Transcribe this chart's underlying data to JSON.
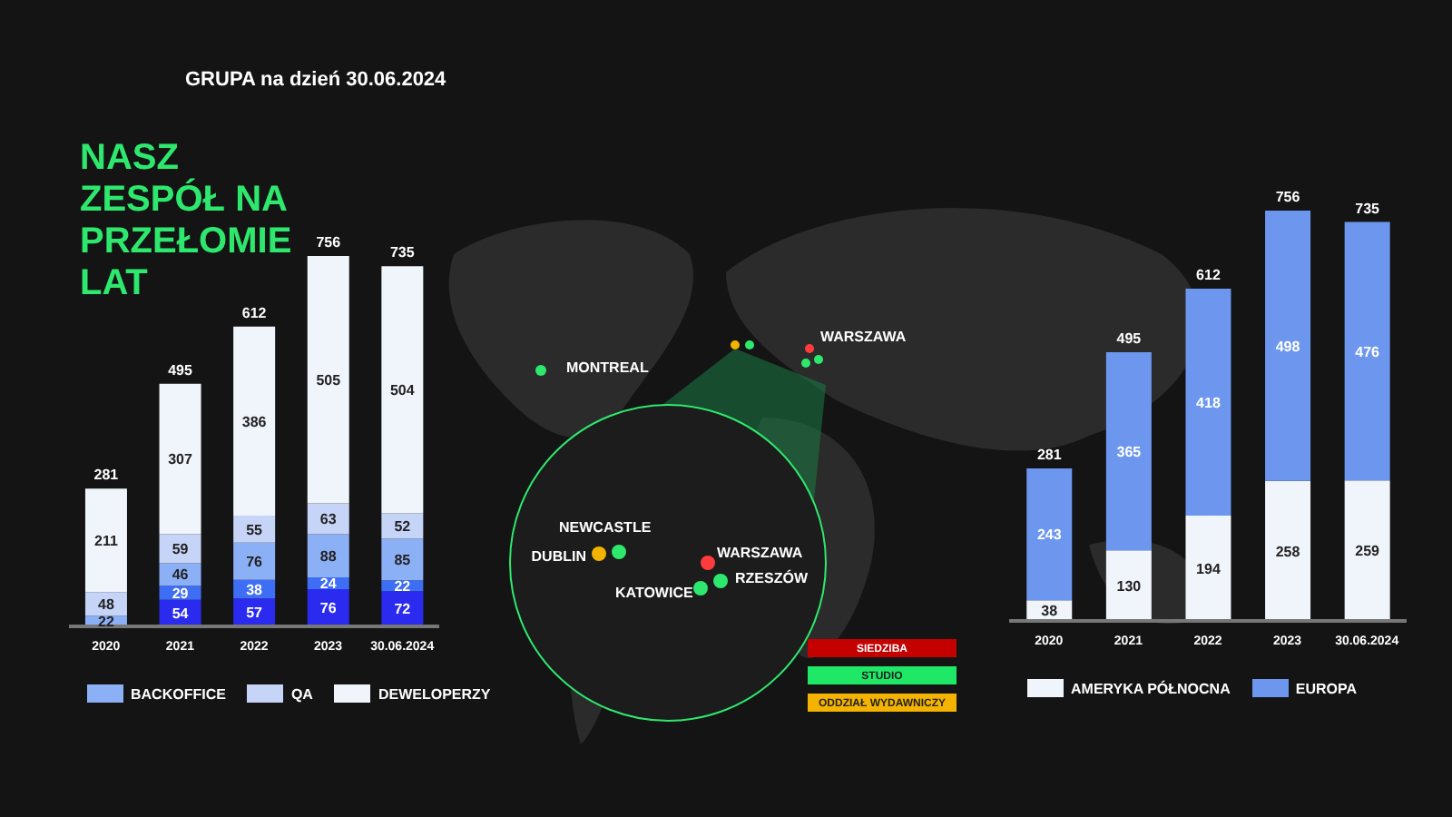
{
  "chart_data": [
    {
      "type": "bar",
      "title": "NASZ ZESPÓŁ NA PRZEŁOMIE LAT",
      "subtitle": "GRUPA na dzień 30.06.2024",
      "categories": [
        "2020",
        "2021",
        "2022",
        "2023",
        "30.06.2024"
      ],
      "stacked": true,
      "data_labels": true,
      "legend": "bottom",
      "series": [
        {
          "color": "#2b2bf0",
          "values": [
            null,
            54,
            57,
            76,
            72
          ]
        },
        {
          "color": "#3e6ef4",
          "values": [
            null,
            29,
            38,
            24,
            22
          ]
        },
        {
          "name": "BACKOFFICE",
          "color": "#8cb0f6",
          "values": [
            22,
            46,
            76,
            88,
            85
          ]
        },
        {
          "name": "QA",
          "color": "#c6d4f8",
          "values": [
            48,
            59,
            55,
            63,
            52
          ]
        },
        {
          "name": "DEWELOPERZY",
          "color": "#f0f4fb",
          "values": [
            211,
            307,
            386,
            505,
            504
          ]
        }
      ],
      "totals": [
        "281",
        "495",
        "612",
        "756",
        "735"
      ]
    },
    {
      "type": "other",
      "annotations": [
        "MONTREAL",
        "WARSZAWA",
        "NEWCASTLE",
        "DUBLIN",
        "WARSZAWA",
        "RZESZÓW",
        "KATOWICE",
        "SIEDZIBA",
        "STUDIO",
        "ODDZIAŁ WYDAWNICZY"
      ]
    },
    {
      "type": "bar",
      "categories": [
        "2020",
        "2021",
        "2022",
        "2023",
        "30.06.2024"
      ],
      "stacked": true,
      "data_labels": true,
      "legend": "bottom",
      "series": [
        {
          "name": "AMERYKA PÓŁNOCNA",
          "color": "#f0f4fb",
          "values": [
            38,
            130,
            194,
            258,
            259
          ]
        },
        {
          "name": "EUROPA",
          "color": "#6d97ef",
          "values": [
            243,
            365,
            418,
            498,
            476
          ]
        }
      ],
      "totals": [
        "281",
        "495",
        "612",
        "756",
        "735"
      ]
    }
  ]
}
